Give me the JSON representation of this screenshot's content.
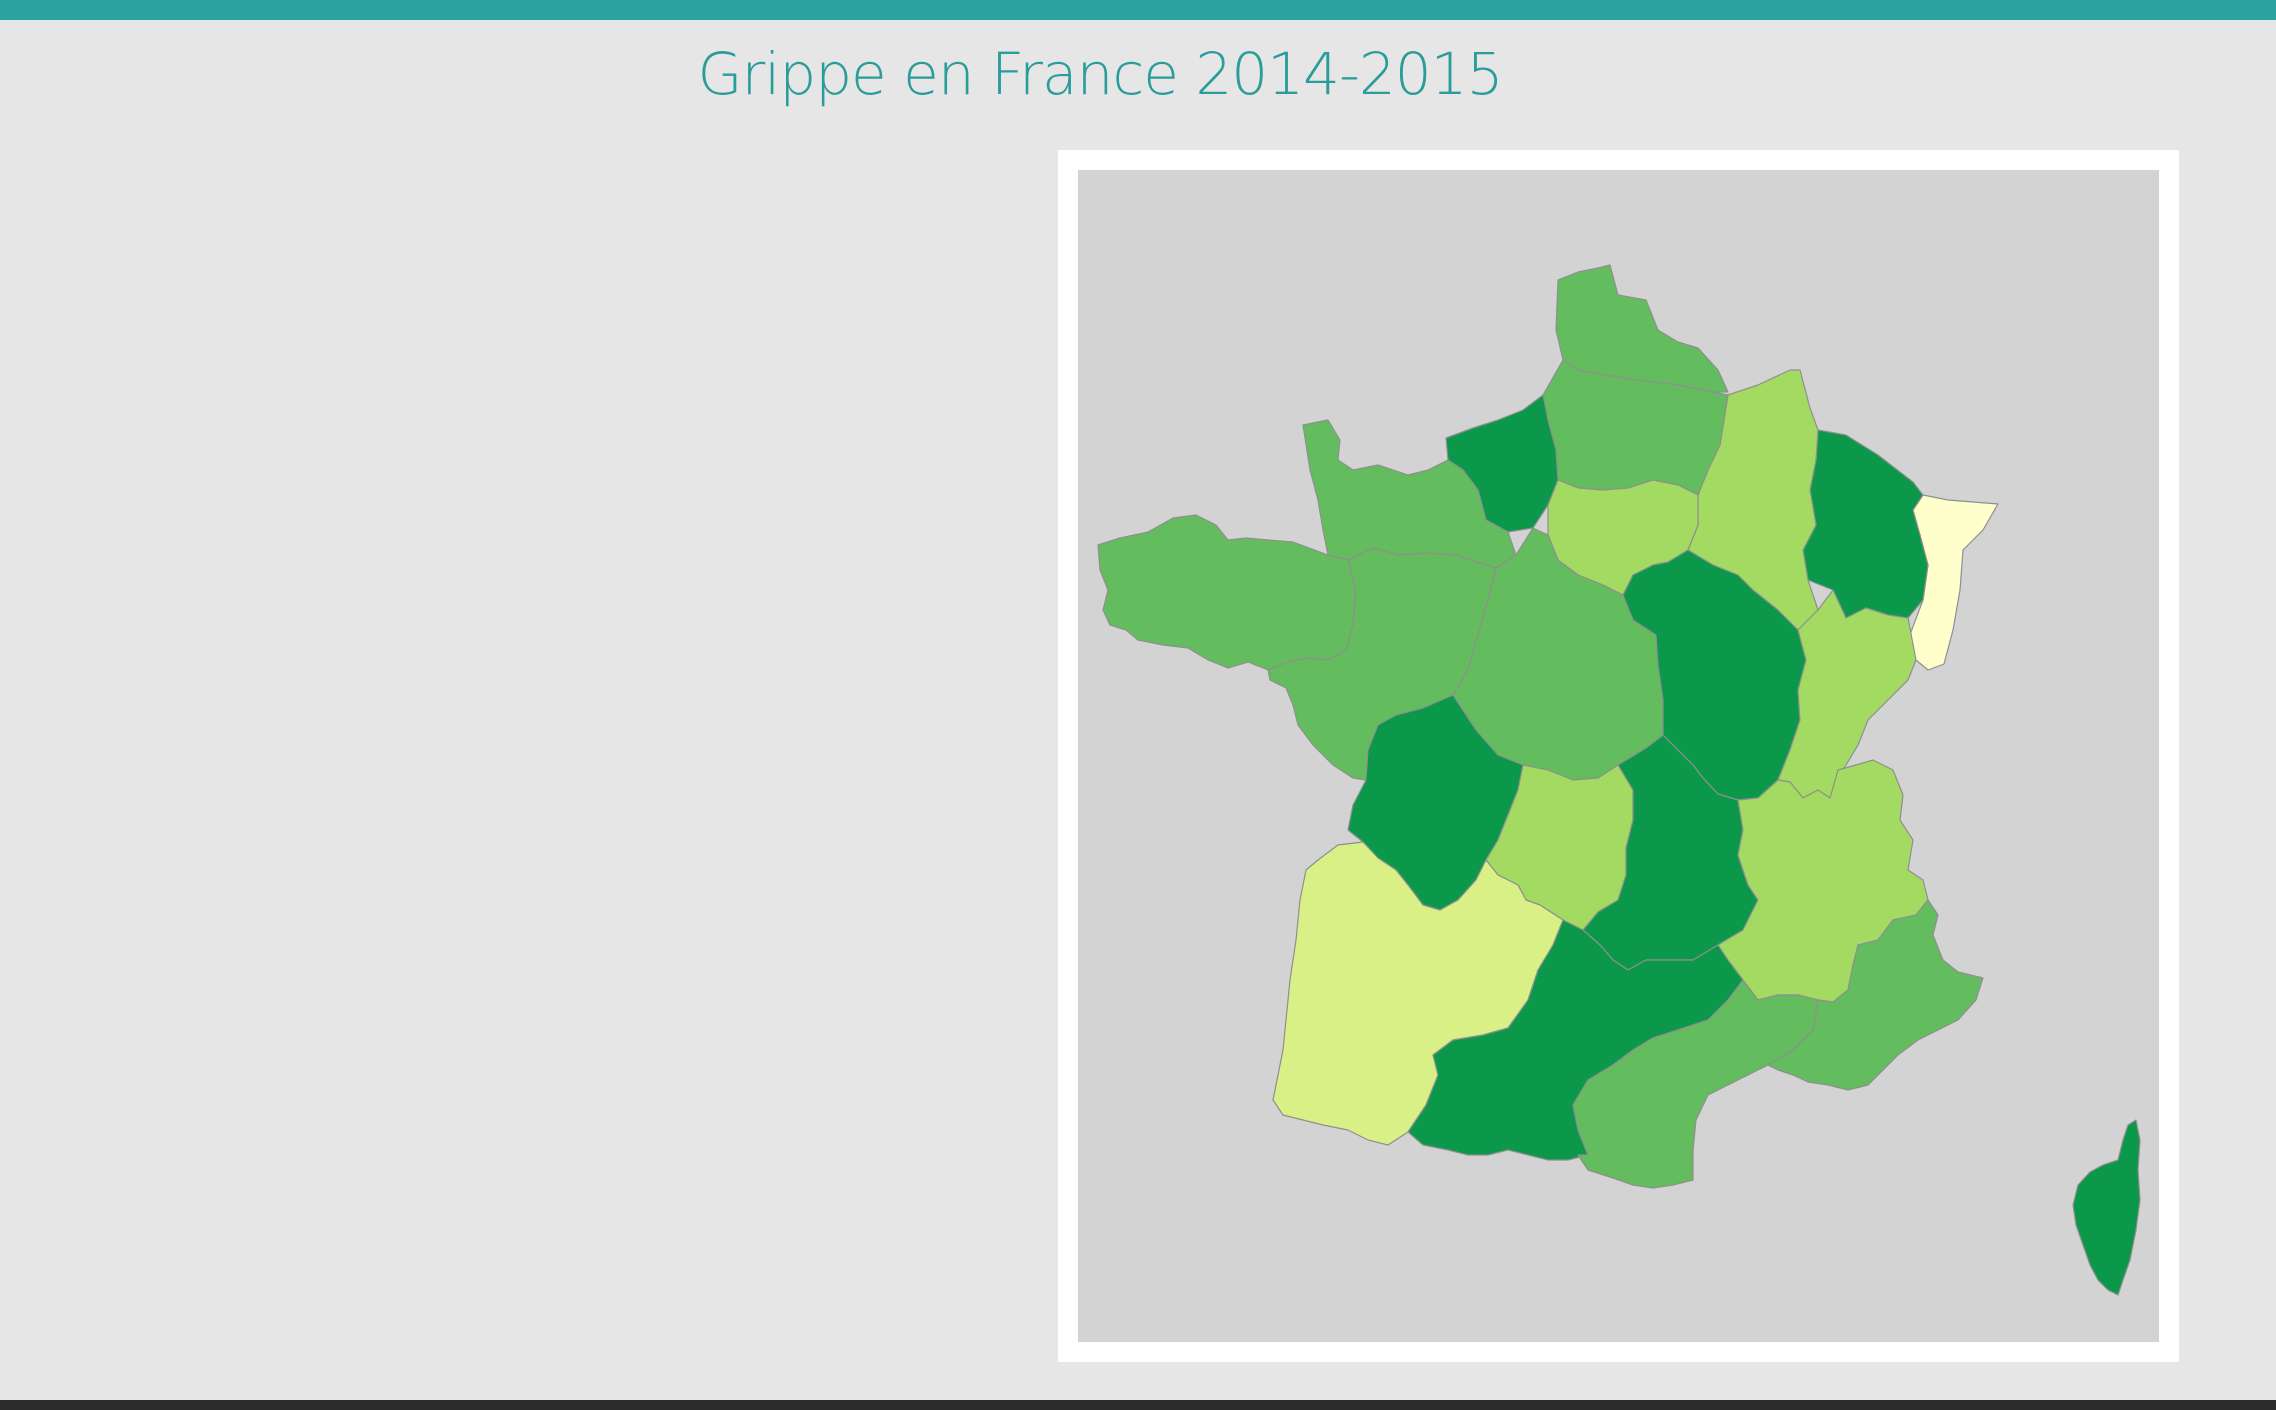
{
  "header": {
    "title": "Grippe en France 2014-2015"
  },
  "colors": {
    "accent": "#2ba3a0",
    "title": "#2a9d9a",
    "map_background": "#d3d3d3",
    "frame": "#ffffff"
  },
  "map": {
    "type": "choropleth",
    "area": "France",
    "season": "2014-2015",
    "scale_colors": [
      "#ffffcc",
      "#d9f087",
      "#a3db62",
      "#63bc5e",
      "#0c984a"
    ],
    "regions": [
      {
        "id": "nord-pas-de-calais",
        "level": 3
      },
      {
        "id": "picardie",
        "level": 3
      },
      {
        "id": "haute-normandie",
        "level": 4
      },
      {
        "id": "basse-normandie",
        "level": 3
      },
      {
        "id": "bretagne",
        "level": 3
      },
      {
        "id": "pays-de-la-loire",
        "level": 3
      },
      {
        "id": "centre",
        "level": 3
      },
      {
        "id": "ile-de-france",
        "level": 2
      },
      {
        "id": "champagne-ardenne",
        "level": 2
      },
      {
        "id": "lorraine",
        "level": 4
      },
      {
        "id": "alsace",
        "level": 0
      },
      {
        "id": "franche-comte",
        "level": 2
      },
      {
        "id": "bourgogne",
        "level": 4
      },
      {
        "id": "poitou-charentes",
        "level": 4
      },
      {
        "id": "limousin",
        "level": 2
      },
      {
        "id": "auvergne",
        "level": 4
      },
      {
        "id": "rhone-alpes",
        "level": 2
      },
      {
        "id": "aquitaine",
        "level": 1
      },
      {
        "id": "midi-pyrenees",
        "level": 4
      },
      {
        "id": "languedoc-roussillon",
        "level": 3
      },
      {
        "id": "provence-alpes-cote-d-azur",
        "level": 3
      },
      {
        "id": "corse",
        "level": 4
      }
    ]
  }
}
